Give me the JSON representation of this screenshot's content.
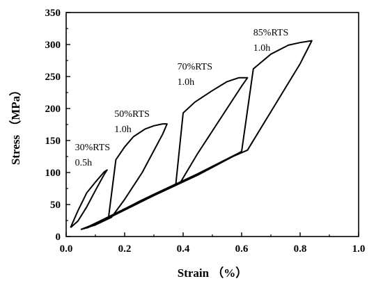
{
  "chart_data": {
    "type": "line",
    "title": "",
    "xlabel": "Strain （%）",
    "ylabel": "Stress （MPa）",
    "xlim": [
      0.0,
      1.0
    ],
    "ylim": [
      0,
      350
    ],
    "x_ticks": [
      "0.0",
      "0.2",
      "0.4",
      "0.6",
      "0.8",
      "1.0"
    ],
    "y_ticks": [
      "0",
      "50",
      "100",
      "150",
      "200",
      "250",
      "300",
      "350"
    ],
    "x_tick_values": [
      0.0,
      0.2,
      0.4,
      0.6,
      0.8,
      1.0
    ],
    "y_tick_values": [
      0,
      50,
      100,
      150,
      200,
      250,
      300,
      350
    ],
    "grid": false,
    "line_color": "#000000",
    "annotations": [
      {
        "lines": [
          "30%RTS",
          "0.5h"
        ],
        "x": 0.03,
        "y": 135
      },
      {
        "lines": [
          "50%RTS",
          "1.0h"
        ],
        "x": 0.165,
        "y": 187
      },
      {
        "lines": [
          "70%RTS",
          "1.0h"
        ],
        "x": 0.38,
        "y": 261
      },
      {
        "lines": [
          "85%RTS",
          "1.0h"
        ],
        "x": 0.64,
        "y": 314
      }
    ],
    "series": [
      {
        "values": [
          [
            0.015,
            14
          ],
          [
            0.04,
            40
          ],
          [
            0.07,
            68
          ],
          [
            0.1,
            85
          ],
          [
            0.13,
            101
          ],
          [
            0.14,
            104
          ],
          [
            0.13,
            97
          ],
          [
            0.1,
            72
          ],
          [
            0.07,
            46
          ],
          [
            0.04,
            24
          ],
          [
            0.015,
            14
          ]
        ]
      },
      {
        "values": [
          [
            0.05,
            11
          ],
          [
            0.1,
            20
          ],
          [
            0.145,
            30
          ],
          [
            0.17,
            120
          ],
          [
            0.2,
            140
          ],
          [
            0.23,
            156
          ],
          [
            0.27,
            168
          ],
          [
            0.3,
            173
          ],
          [
            0.33,
            176
          ],
          [
            0.345,
            176
          ],
          [
            0.33,
            160
          ],
          [
            0.26,
            100
          ],
          [
            0.2,
            58
          ],
          [
            0.155,
            30
          ],
          [
            0.1,
            18
          ],
          [
            0.05,
            11
          ]
        ]
      },
      {
        "values": [
          [
            0.07,
            13
          ],
          [
            0.15,
            30
          ],
          [
            0.25,
            55
          ],
          [
            0.375,
            82
          ],
          [
            0.4,
            193
          ],
          [
            0.44,
            210
          ],
          [
            0.5,
            228
          ],
          [
            0.55,
            242
          ],
          [
            0.59,
            248
          ],
          [
            0.62,
            248
          ],
          [
            0.6,
            235
          ],
          [
            0.55,
            200
          ],
          [
            0.45,
            130
          ],
          [
            0.39,
            84
          ],
          [
            0.28,
            60
          ],
          [
            0.15,
            32
          ],
          [
            0.07,
            13
          ]
        ]
      },
      {
        "values": [
          [
            0.06,
            12
          ],
          [
            0.15,
            32
          ],
          [
            0.3,
            66
          ],
          [
            0.45,
            98
          ],
          [
            0.58,
            128
          ],
          [
            0.6,
            133
          ],
          [
            0.64,
            262
          ],
          [
            0.7,
            285
          ],
          [
            0.76,
            299
          ],
          [
            0.8,
            303
          ],
          [
            0.84,
            306
          ],
          [
            0.8,
            270
          ],
          [
            0.7,
            195
          ],
          [
            0.62,
            135
          ],
          [
            0.57,
            125
          ],
          [
            0.45,
            96
          ],
          [
            0.3,
            64
          ],
          [
            0.15,
            30
          ],
          [
            0.06,
            12
          ]
        ]
      }
    ]
  }
}
